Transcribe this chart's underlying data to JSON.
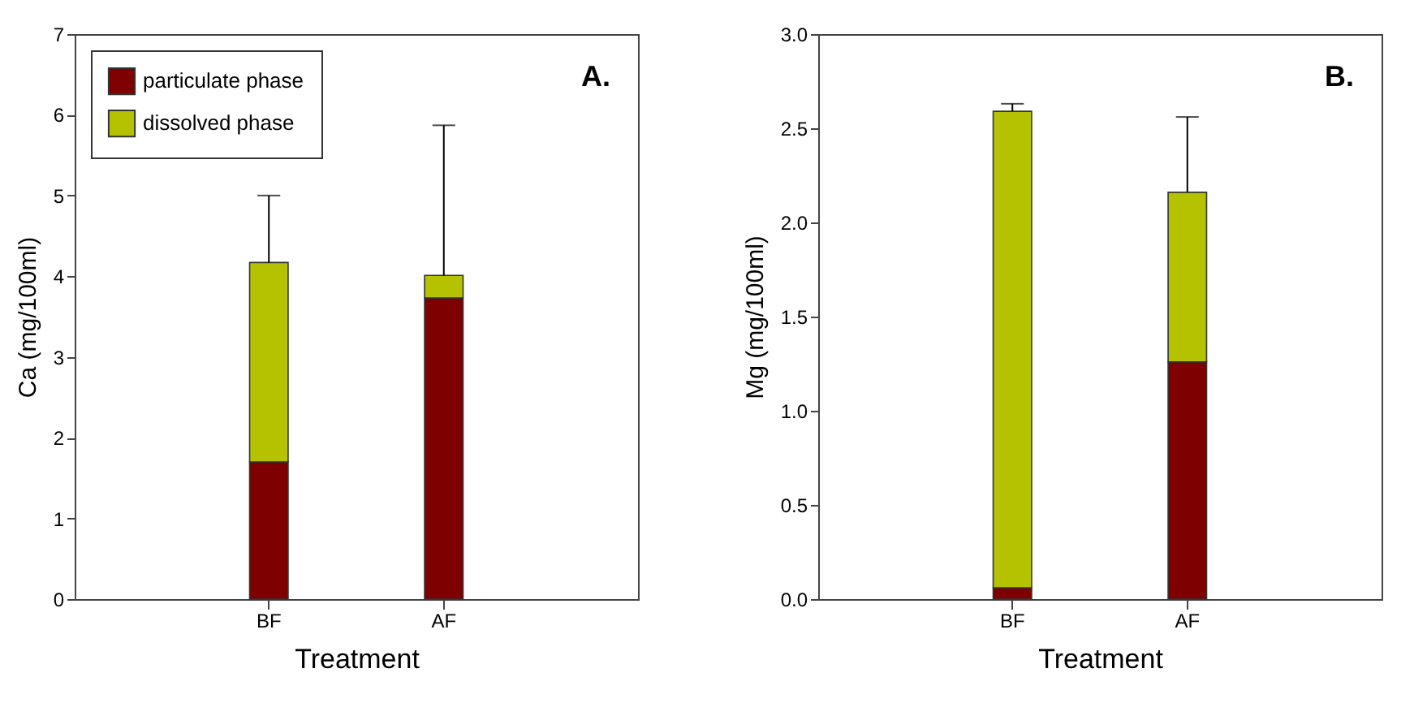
{
  "chart_data": [
    {
      "type": "bar",
      "stacked": true,
      "xlabel": "Treatment",
      "ylabel": "Ca (mg/100ml)",
      "categories": [
        "BF",
        "AF"
      ],
      "ylim": [
        0,
        7
      ],
      "yticks": [
        0,
        1,
        2,
        3,
        4,
        5,
        6,
        7
      ],
      "legend": "top left",
      "grid": false,
      "annotations": [
        "A."
      ],
      "series": [
        {
          "name": "particulate phase",
          "color": "#7f0000",
          "values": [
            1.7,
            3.73
          ]
        },
        {
          "name": "dissolved phase",
          "color": "#b5c200",
          "values": [
            2.47,
            0.28
          ],
          "errors": [
            [
              4.17,
              5.0
            ],
            [
              4.01,
              5.87
            ]
          ]
        }
      ]
    },
    {
      "type": "bar",
      "stacked": true,
      "xlabel": "Treatment",
      "ylabel": "Mg (mg/100ml)",
      "categories": [
        "BF",
        "AF"
      ],
      "ylim": [
        0,
        3
      ],
      "yticks": [
        {
          "value": 0,
          "label": "0.0"
        },
        {
          "value": 0.5,
          "label": "0.5"
        },
        {
          "value": 1,
          "label": "1.0"
        },
        {
          "value": 1.5,
          "label": "1.5"
        },
        {
          "value": 2,
          "label": "2.0"
        },
        {
          "value": 2.5,
          "label": "2.5"
        },
        {
          "value": 3,
          "label": "3.0"
        }
      ],
      "grid": false,
      "annotations": [
        "B."
      ],
      "series": [
        {
          "color": "#7f0000",
          "values": [
            0.06,
            1.26
          ]
        },
        {
          "color": "#b5c200",
          "values": [
            2.53,
            0.9
          ],
          "errors": [
            [
              2.59,
              2.63
            ],
            [
              2.16,
              2.56
            ]
          ]
        }
      ]
    }
  ]
}
